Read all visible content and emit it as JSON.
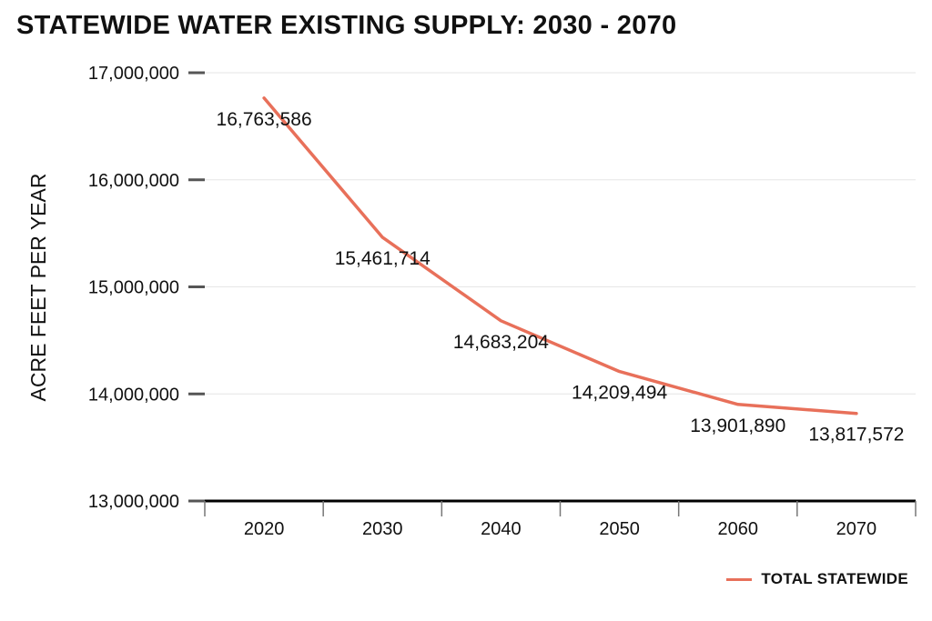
{
  "chart_data": {
    "type": "line",
    "title": "STATEWIDE WATER EXISTING SUPPLY: 2030 - 2070",
    "ylabel": "ACRE FEET PER YEAR",
    "xlabel": "",
    "categories": [
      "2020",
      "2030",
      "2040",
      "2050",
      "2060",
      "2070"
    ],
    "series": [
      {
        "name": "TOTAL STATEWIDE",
        "color": "#e8705a",
        "values": [
          16763586,
          15461714,
          14683204,
          14209494,
          13901890,
          13817572
        ],
        "labels": [
          "16,763,586",
          "15,461,714",
          "14,683,204",
          "14,209,494",
          "13,901,890",
          "13,817,572"
        ]
      }
    ],
    "ylim": [
      13000000,
      17000000
    ],
    "yticks": [
      17000000,
      16000000,
      15000000,
      14000000,
      13000000
    ],
    "ytick_labels": [
      "17,000,000",
      "16,000,000",
      "15,000,000",
      "14,000,000",
      "13,000,000"
    ],
    "grid": true,
    "legend_position": "bottom-right"
  }
}
